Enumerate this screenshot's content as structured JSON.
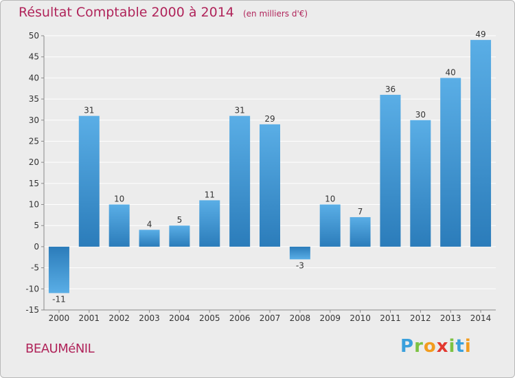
{
  "title": "Résultat Comptable 2000 à 2014",
  "subtitle": "(en milliers d'€)",
  "commune": "BEAUMéNIL",
  "logo": {
    "letters": [
      "P",
      "r",
      "o",
      "x",
      "i",
      "t",
      "i"
    ],
    "colors": [
      "#3aa0dc",
      "#7cc243",
      "#f29c1f",
      "#e2382f",
      "#7cc243",
      "#3aa0dc",
      "#f29c1f"
    ]
  },
  "colors": {
    "bar_top": "#5aaee6",
    "bar_bottom": "#2b7cba",
    "title": "#b0245a",
    "grid": "#ffffff",
    "background": "#ececec"
  },
  "chart_data": {
    "type": "bar",
    "title": "Résultat Comptable 2000 à 2014",
    "subtitle": "(en milliers d'€)",
    "categories": [
      "2000",
      "2001",
      "2002",
      "2003",
      "2004",
      "2005",
      "2006",
      "2007",
      "2008",
      "2009",
      "2010",
      "2011",
      "2012",
      "2013",
      "2014"
    ],
    "values": [
      -11,
      31,
      10,
      4,
      5,
      11,
      31,
      29,
      -3,
      10,
      7,
      36,
      30,
      40,
      49
    ],
    "ylim": [
      -15,
      50
    ],
    "yticks": [
      -15,
      -10,
      -5,
      0,
      5,
      10,
      15,
      20,
      25,
      30,
      35,
      40,
      45,
      50
    ],
    "grid": true,
    "legend": "none"
  }
}
